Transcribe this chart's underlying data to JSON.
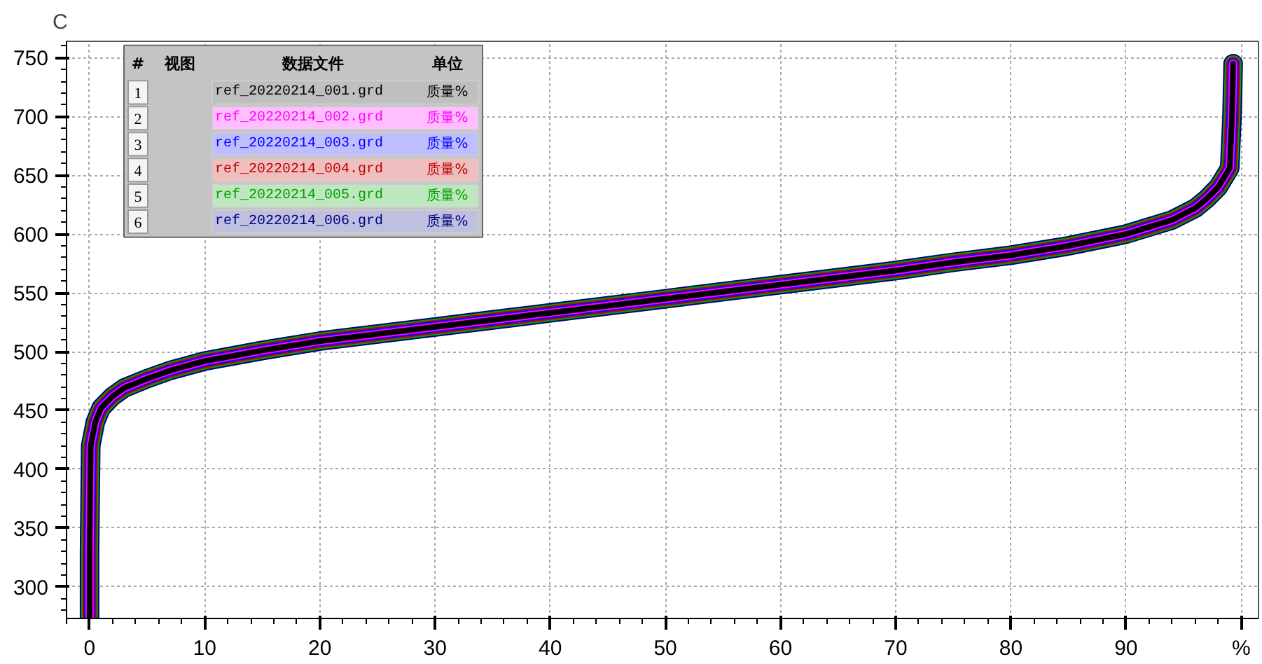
{
  "chart_data": {
    "type": "line",
    "ylabel": "C",
    "x": [
      0,
      0,
      0.1,
      0.5,
      1,
      2,
      3,
      5,
      7,
      10,
      15,
      20,
      25,
      30,
      35,
      40,
      45,
      50,
      55,
      60,
      65,
      70,
      75,
      80,
      85,
      88,
      90,
      92,
      94,
      96,
      97,
      98,
      99,
      99.2,
      99.3
    ],
    "series": [
      {
        "name": "ref_20220214_001.grd",
        "color": "#000000",
        "values": [
          273,
          330,
          420,
          440,
          452,
          462,
          469,
          477,
          484,
          492,
          501,
          509,
          515,
          521,
          527,
          533,
          539,
          545,
          551,
          557,
          563,
          569,
          576,
          582,
          590,
          596,
          600,
          606,
          612,
          622,
          630,
          640,
          656,
          700,
          745
        ]
      },
      {
        "name": "ref_20220214_002.grd",
        "color": "#ff00ff",
        "values": [
          273,
          330,
          420,
          440,
          452,
          462,
          469,
          477,
          484,
          492,
          501,
          509,
          515,
          521,
          527,
          533,
          539,
          545,
          551,
          557,
          563,
          569,
          576,
          582,
          590,
          596,
          600,
          606,
          612,
          622,
          630,
          640,
          656,
          700,
          745
        ]
      },
      {
        "name": "ref_20220214_003.grd",
        "color": "#0000ff",
        "values": [
          273,
          330,
          420,
          440,
          452,
          462,
          469,
          477,
          484,
          492,
          501,
          509,
          515,
          521,
          527,
          533,
          539,
          545,
          551,
          557,
          563,
          569,
          576,
          582,
          590,
          596,
          600,
          606,
          612,
          622,
          630,
          640,
          656,
          700,
          745
        ]
      },
      {
        "name": "ref_20220214_004.grd",
        "color": "#c00000",
        "values": [
          273,
          330,
          420,
          440,
          452,
          462,
          469,
          477,
          484,
          492,
          501,
          509,
          515,
          521,
          527,
          533,
          539,
          545,
          551,
          557,
          563,
          569,
          576,
          582,
          590,
          596,
          600,
          606,
          612,
          622,
          630,
          640,
          656,
          700,
          745
        ]
      },
      {
        "name": "ref_20220214_005.grd",
        "color": "#00a000",
        "values": [
          273,
          330,
          420,
          440,
          452,
          462,
          469,
          477,
          484,
          492,
          501,
          509,
          515,
          521,
          527,
          533,
          539,
          545,
          551,
          557,
          563,
          569,
          576,
          582,
          590,
          596,
          600,
          606,
          612,
          622,
          630,
          640,
          656,
          700,
          745
        ]
      },
      {
        "name": "ref_20220214_006.grd",
        "color": "#000080",
        "values": [
          273,
          330,
          420,
          440,
          452,
          462,
          469,
          477,
          484,
          492,
          501,
          509,
          515,
          521,
          527,
          533,
          539,
          545,
          551,
          557,
          563,
          569,
          576,
          582,
          590,
          596,
          600,
          606,
          612,
          622,
          630,
          640,
          656,
          700,
          745
        ]
      }
    ],
    "xlim": [
      -2,
      101.5
    ],
    "xticks": [
      0,
      10,
      20,
      30,
      40,
      50,
      60,
      70,
      80,
      90,
      {
        "value": 100,
        "label": "%"
      }
    ],
    "ylim": [
      273,
      764
    ],
    "yticks": [
      300,
      350,
      400,
      450,
      500,
      550,
      600,
      650,
      700,
      750
    ],
    "grid": true,
    "legend": "top left",
    "marker": "none",
    "line_style": "solid",
    "annotations": [
      "#",
      "视图",
      "数据文件",
      "单位",
      "质量%",
      "1",
      "2",
      "3",
      "4",
      "5",
      "6"
    ]
  }
}
